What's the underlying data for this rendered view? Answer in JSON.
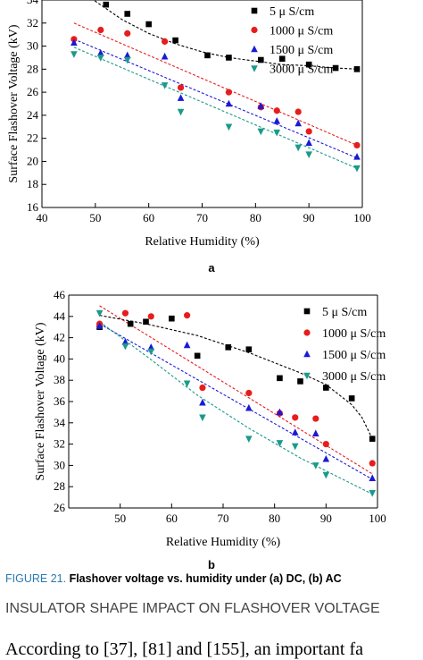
{
  "chart_data": [
    {
      "type": "scatter",
      "panel": "a",
      "xlabel": "Relative Humidity (%)",
      "ylabel": "Surface Flashover Voltage (kV)",
      "xlim": [
        40,
        100
      ],
      "ylim": [
        16,
        34
      ],
      "xticks": [
        40,
        50,
        60,
        70,
        80,
        90,
        100
      ],
      "yticks": [
        16,
        18,
        20,
        22,
        24,
        26,
        28,
        30,
        32,
        34
      ],
      "legend_position": "top-right",
      "grid": false,
      "series": [
        {
          "name": "5 μ S/cm",
          "color": "#000000",
          "marker": "square",
          "x": [
            52,
            56,
            60,
            65,
            71,
            75,
            81,
            85,
            90,
            95,
            99
          ],
          "y": [
            33.6,
            32.8,
            31.9,
            30.5,
            29.2,
            29.0,
            28.8,
            28.9,
            28.4,
            28.1,
            28.0
          ],
          "fit": [
            [
              46,
              35.4
            ],
            [
              50,
              33.9
            ],
            [
              55,
              32.3
            ],
            [
              60,
              31.1
            ],
            [
              65,
              30.2
            ],
            [
              70,
              29.5
            ],
            [
              75,
              29.0
            ],
            [
              80,
              28.7
            ],
            [
              85,
              28.4
            ],
            [
              90,
              28.3
            ],
            [
              95,
              28.1
            ],
            [
              99,
              28.0
            ]
          ]
        },
        {
          "name": "1000 μ S/cm",
          "color": "#e81c1c",
          "marker": "circle",
          "x": [
            46,
            51,
            56,
            63,
            66,
            75,
            81,
            84,
            88,
            90,
            99
          ],
          "y": [
            30.6,
            31.4,
            31.1,
            30.4,
            26.4,
            26.0,
            24.7,
            24.4,
            24.3,
            22.6,
            21.4
          ],
          "fit": [
            [
              46,
              32.0
            ],
            [
              99,
              21.4
            ]
          ]
        },
        {
          "name": "1500 μ S/cm",
          "color": "#1a1ad6",
          "marker": "triangle-up",
          "x": [
            46,
            51,
            56,
            63,
            66,
            75,
            81,
            84,
            88,
            90,
            99
          ],
          "y": [
            30.3,
            29.4,
            29.2,
            29.1,
            25.5,
            25.0,
            24.8,
            23.5,
            23.3,
            21.6,
            20.4
          ],
          "fit": [
            [
              46,
              30.6
            ],
            [
              99,
              20.3
            ]
          ]
        },
        {
          "name": "3000 μ S/cm",
          "color": "#1a9a8a",
          "marker": "triangle-down",
          "x": [
            46,
            51,
            56,
            63,
            66,
            75,
            81,
            84,
            88,
            90,
            99
          ],
          "y": [
            29.3,
            29.0,
            28.8,
            26.6,
            24.3,
            23.0,
            22.6,
            22.5,
            21.2,
            20.6,
            19.4
          ],
          "fit": [
            [
              46,
              29.9
            ],
            [
              99,
              19.4
            ]
          ]
        }
      ]
    },
    {
      "type": "scatter",
      "panel": "b",
      "xlabel": "Relative Humidity (%)",
      "ylabel": "Surface Flashover Voltage (kV)",
      "xlim": [
        40,
        100
      ],
      "ylim": [
        26,
        46
      ],
      "xticks": [
        50,
        60,
        70,
        80,
        90,
        100
      ],
      "yticks": [
        26,
        28,
        30,
        32,
        34,
        36,
        38,
        40,
        42,
        44,
        46
      ],
      "legend_position": "top-right",
      "grid": false,
      "series": [
        {
          "name": "5 μ S/cm",
          "color": "#000000",
          "marker": "square",
          "x": [
            46,
            52,
            55,
            60,
            65,
            71,
            75,
            81,
            85,
            90,
            95,
            99
          ],
          "y": [
            43.0,
            43.3,
            43.5,
            43.8,
            40.3,
            41.1,
            40.9,
            38.2,
            37.9,
            37.3,
            36.3,
            32.5
          ],
          "fit": [
            [
              46,
              44.1
            ],
            [
              55,
              43.3
            ],
            [
              65,
              42.2
            ],
            [
              75,
              40.6
            ],
            [
              85,
              38.7
            ],
            [
              90,
              37.6
            ],
            [
              95,
              35.7
            ],
            [
              97,
              34.5
            ],
            [
              99,
              32.5
            ]
          ]
        },
        {
          "name": "1000 μ S/cm",
          "color": "#e81c1c",
          "marker": "circle",
          "x": [
            46,
            51,
            56,
            63,
            66,
            75,
            81,
            84,
            88,
            90,
            99
          ],
          "y": [
            43.3,
            44.3,
            44.0,
            44.1,
            37.3,
            36.8,
            34.9,
            34.5,
            34.4,
            32.0,
            30.2
          ],
          "fit": [
            [
              46,
              45.0
            ],
            [
              99,
              29.2
            ]
          ]
        },
        {
          "name": "1500 μ S/cm",
          "color": "#1a1ad6",
          "marker": "triangle-up",
          "x": [
            46,
            51,
            56,
            63,
            66,
            75,
            81,
            84,
            88,
            90,
            99
          ],
          "y": [
            43.1,
            41.6,
            41.1,
            41.3,
            35.9,
            35.4,
            35.0,
            33.1,
            33.0,
            30.6,
            28.8
          ],
          "fit": [
            [
              46,
              43.3
            ],
            [
              99,
              28.7
            ]
          ]
        },
        {
          "name": "3000 μ S/cm",
          "color": "#1a9a8a",
          "marker": "triangle-down",
          "x": [
            46,
            51,
            56,
            63,
            66,
            75,
            81,
            84,
            88,
            90,
            99
          ],
          "y": [
            44.3,
            41.2,
            40.7,
            37.7,
            34.5,
            32.5,
            32.1,
            31.8,
            30.0,
            29.1,
            27.4
          ],
          "fit": [
            [
              46,
              43.5
            ],
            [
              55,
              40.3
            ],
            [
              65,
              36.6
            ],
            [
              75,
              33.5
            ],
            [
              85,
              30.7
            ],
            [
              99,
              27.3
            ]
          ]
        }
      ]
    }
  ],
  "labels": {
    "a": "a",
    "b": "b"
  },
  "caption": {
    "number": "FIGURE 21.",
    "text": "Flashover voltage vs. humidity under (a) DC, (b) AC"
  },
  "section_heading": "INSULATOR SHAPE IMPACT ON FLASHOVER VOLTAGE",
  "body_text": "According to [37], [81] and [155], an important fa"
}
